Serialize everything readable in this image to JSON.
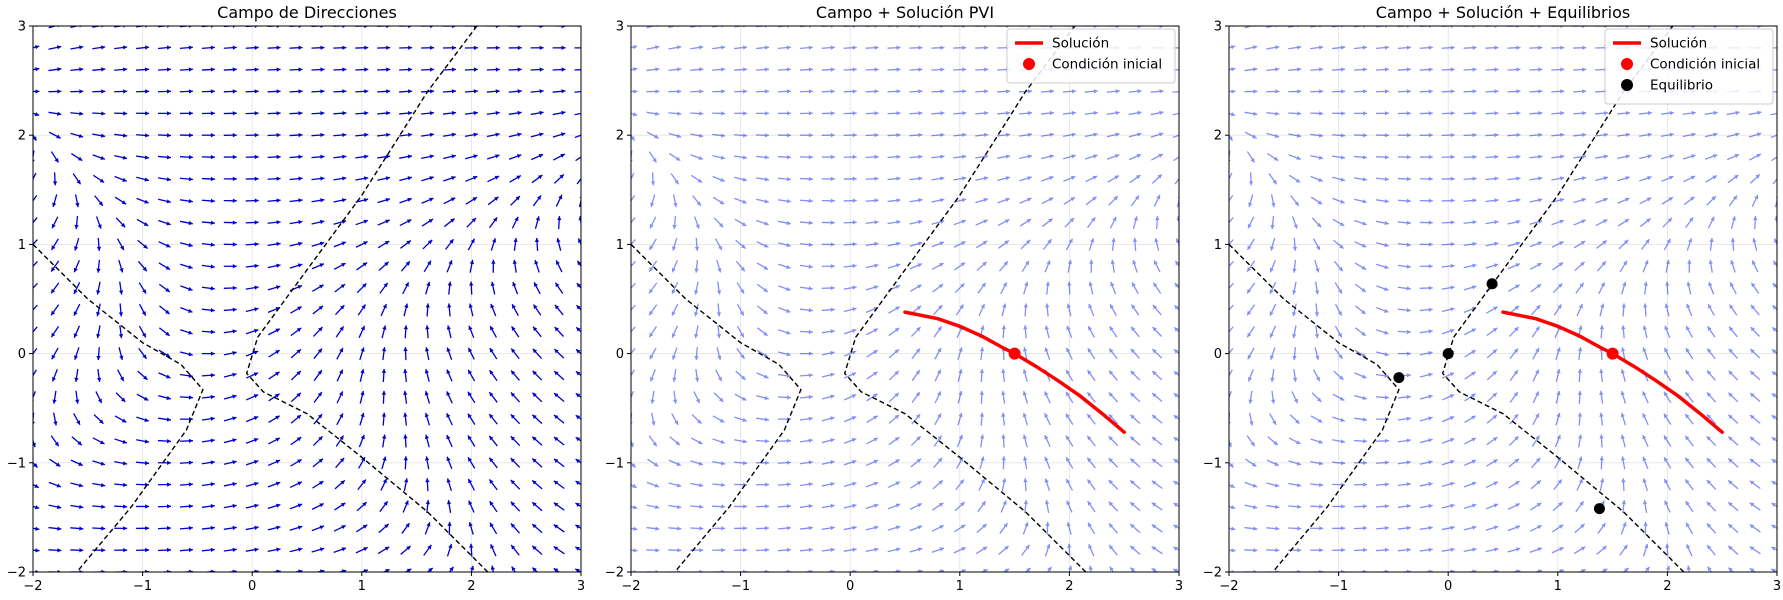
{
  "chart_data": [
    {
      "type": "quiver",
      "title": "Campo de Direcciones",
      "xlim": [
        -2,
        3
      ],
      "ylim": [
        -2,
        3
      ],
      "xticks": [
        -2,
        -1,
        0,
        1,
        2,
        3
      ],
      "yticks": [
        -2,
        -1,
        0,
        1,
        2,
        3
      ],
      "xticklabels": [
        "−2",
        "−1",
        "0",
        "1",
        "2",
        "3"
      ],
      "yticklabels": [
        "−2",
        "−1",
        "0",
        "1",
        "2",
        "3"
      ],
      "grid": true,
      "field": {
        "color": "#0000cc",
        "opacity": 1.0,
        "grid_n": 26
      },
      "nullclines": [
        {
          "name": "",
          "style": "dashed",
          "color": "#000000",
          "points": [
            [
              -2,
              1.0
            ],
            [
              -1.5,
              0.5
            ],
            [
              -1.0,
              0.1
            ],
            [
              -0.65,
              -0.1
            ],
            [
              -0.45,
              -0.33
            ],
            [
              -0.6,
              -0.7
            ],
            [
              -1.1,
              -1.4
            ],
            [
              -1.6,
              -2.0
            ]
          ]
        },
        {
          "name": "",
          "style": "dashed",
          "color": "#000000",
          "points": [
            [
              2.15,
              -2.0
            ],
            [
              1.6,
              -1.45
            ],
            [
              1.0,
              -0.95
            ],
            [
              0.5,
              -0.55
            ],
            [
              0.1,
              -0.35
            ],
            [
              -0.05,
              -0.18
            ],
            [
              0.05,
              0.15
            ],
            [
              0.4,
              0.63
            ],
            [
              1.0,
              1.45
            ],
            [
              1.6,
              2.4
            ],
            [
              2.05,
              3.0
            ]
          ]
        }
      ],
      "series": [],
      "initial_condition": null,
      "equilibria": [],
      "legend": null
    },
    {
      "type": "quiver",
      "title": "Campo + Solución PVI",
      "xlim": [
        -2,
        3
      ],
      "ylim": [
        -2,
        3
      ],
      "xticks": [
        -2,
        -1,
        0,
        1,
        2,
        3
      ],
      "yticks": [
        -2,
        -1,
        0,
        1,
        2,
        3
      ],
      "xticklabels": [
        "−2",
        "−1",
        "0",
        "1",
        "2",
        "3"
      ],
      "yticklabels": [
        "−2",
        "−1",
        "0",
        "1",
        "2",
        "3"
      ],
      "grid": true,
      "field": {
        "color": "#2233ee",
        "opacity": 0.55,
        "grid_n": 26
      },
      "nullclines": [
        {
          "name": "",
          "style": "dashed",
          "color": "#000000",
          "points": [
            [
              -2,
              1.0
            ],
            [
              -1.5,
              0.5
            ],
            [
              -1.0,
              0.1
            ],
            [
              -0.65,
              -0.1
            ],
            [
              -0.45,
              -0.33
            ],
            [
              -0.6,
              -0.7
            ],
            [
              -1.1,
              -1.4
            ],
            [
              -1.6,
              -2.0
            ]
          ]
        },
        {
          "name": "",
          "style": "dashed",
          "color": "#000000",
          "points": [
            [
              2.15,
              -2.0
            ],
            [
              1.6,
              -1.45
            ],
            [
              1.0,
              -0.95
            ],
            [
              0.5,
              -0.55
            ],
            [
              0.1,
              -0.35
            ],
            [
              -0.05,
              -0.18
            ],
            [
              0.05,
              0.15
            ],
            [
              0.4,
              0.63
            ],
            [
              1.0,
              1.45
            ],
            [
              1.6,
              2.4
            ],
            [
              2.05,
              3.0
            ]
          ]
        }
      ],
      "series": [
        {
          "name": "Solución",
          "color": "#ff0000",
          "points": [
            [
              0.5,
              0.38
            ],
            [
              0.8,
              0.32
            ],
            [
              1.0,
              0.25
            ],
            [
              1.2,
              0.16
            ],
            [
              1.4,
              0.05
            ],
            [
              1.5,
              0.0
            ],
            [
              1.7,
              -0.12
            ],
            [
              1.9,
              -0.25
            ],
            [
              2.1,
              -0.39
            ],
            [
              2.3,
              -0.55
            ],
            [
              2.5,
              -0.72
            ]
          ]
        }
      ],
      "initial_condition": {
        "name": "Condición inicial",
        "color": "#ff0000",
        "x": 1.5,
        "y": 0.0
      },
      "equilibria": [],
      "legend": {
        "placement": "upper right",
        "entries": [
          "Solución",
          "Condición inicial"
        ]
      }
    },
    {
      "type": "quiver",
      "title": "Campo + Solución + Equilibrios",
      "xlim": [
        -2,
        3
      ],
      "ylim": [
        -2,
        3
      ],
      "xticks": [
        -2,
        -1,
        0,
        1,
        2,
        3
      ],
      "yticks": [
        -2,
        -1,
        0,
        1,
        2,
        3
      ],
      "xticklabels": [
        "−2",
        "−1",
        "0",
        "1",
        "2",
        "3"
      ],
      "yticklabels": [
        "−2",
        "−1",
        "0",
        "1",
        "2",
        "3"
      ],
      "grid": true,
      "field": {
        "color": "#2233ee",
        "opacity": 0.55,
        "grid_n": 26
      },
      "nullclines": [
        {
          "name": "",
          "style": "dashed",
          "color": "#000000",
          "points": [
            [
              -2,
              1.0
            ],
            [
              -1.5,
              0.5
            ],
            [
              -1.0,
              0.1
            ],
            [
              -0.65,
              -0.1
            ],
            [
              -0.45,
              -0.33
            ],
            [
              -0.6,
              -0.7
            ],
            [
              -1.1,
              -1.4
            ],
            [
              -1.6,
              -2.0
            ]
          ]
        },
        {
          "name": "",
          "style": "dashed",
          "color": "#000000",
          "points": [
            [
              2.15,
              -2.0
            ],
            [
              1.6,
              -1.45
            ],
            [
              1.0,
              -0.95
            ],
            [
              0.5,
              -0.55
            ],
            [
              0.1,
              -0.35
            ],
            [
              -0.05,
              -0.18
            ],
            [
              0.05,
              0.15
            ],
            [
              0.4,
              0.63
            ],
            [
              1.0,
              1.45
            ],
            [
              1.6,
              2.4
            ],
            [
              2.05,
              3.0
            ]
          ]
        }
      ],
      "series": [
        {
          "name": "Solución",
          "color": "#ff0000",
          "points": [
            [
              0.5,
              0.38
            ],
            [
              0.8,
              0.32
            ],
            [
              1.0,
              0.25
            ],
            [
              1.2,
              0.16
            ],
            [
              1.4,
              0.05
            ],
            [
              1.5,
              0.0
            ],
            [
              1.7,
              -0.12
            ],
            [
              1.9,
              -0.25
            ],
            [
              2.1,
              -0.39
            ],
            [
              2.3,
              -0.55
            ],
            [
              2.5,
              -0.72
            ]
          ]
        }
      ],
      "initial_condition": {
        "name": "Condición inicial",
        "color": "#ff0000",
        "x": 1.5,
        "y": 0.0
      },
      "equilibria": [
        {
          "name": "Equilibrio",
          "x": -0.45,
          "y": -0.22
        },
        {
          "name": "Equilibrio",
          "x": 0.0,
          "y": 0.0
        },
        {
          "name": "Equilibrio",
          "x": 0.4,
          "y": 0.64
        },
        {
          "name": "Equilibrio",
          "x": 1.38,
          "y": -1.42
        }
      ],
      "legend": {
        "placement": "upper right",
        "entries": [
          "Solución",
          "Condición inicial",
          "Equilibrio"
        ]
      }
    }
  ]
}
